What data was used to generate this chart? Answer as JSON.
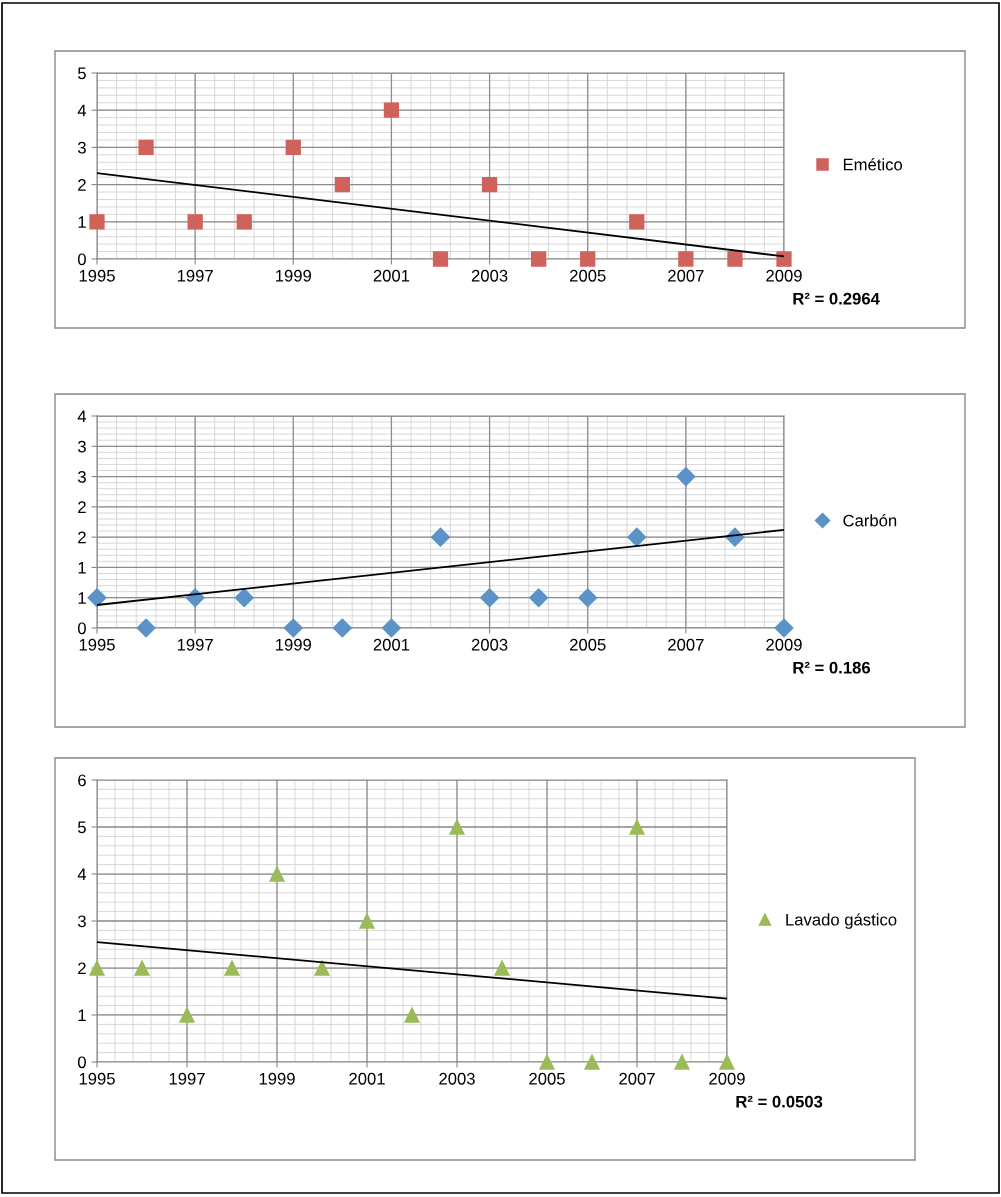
{
  "chart_data": [
    {
      "type": "scatter",
      "xlim": [
        1995,
        2009
      ],
      "xticks": [
        1995,
        1997,
        1999,
        2001,
        2003,
        2005,
        2007,
        2009
      ],
      "ylim": [
        0,
        5
      ],
      "yticks": [
        0,
        1,
        2,
        3,
        4,
        5
      ],
      "grid": true,
      "legend": "right",
      "annotations": [
        "R² = 0.2964"
      ],
      "series": [
        {
          "name": "Emético",
          "color": "#d0625c",
          "marker": "square",
          "x": [
            1995,
            1996,
            1997,
            1998,
            1999,
            2000,
            2001,
            2002,
            2003,
            2004,
            2005,
            2006,
            2007,
            2008,
            2009
          ],
          "values": [
            1,
            3,
            1,
            1,
            3,
            2,
            4,
            0,
            2,
            0,
            0,
            1,
            0,
            0,
            0
          ]
        },
        {
          "type": "line",
          "color": "#000000",
          "x": [
            1995,
            2009
          ],
          "values": [
            2.31,
            0.07
          ]
        }
      ]
    },
    {
      "type": "scatter",
      "xlim": [
        1995,
        2009
      ],
      "xticks": [
        1995,
        1997,
        1999,
        2001,
        2003,
        2005,
        2007,
        2009
      ],
      "ylim": [
        0,
        3.5
      ],
      "yticks": [
        0,
        {
          "value": 0.5,
          "label": "1"
        },
        1,
        {
          "value": 1.5,
          "label": "2"
        },
        2,
        {
          "value": 2.5,
          "label": "3"
        },
        3,
        {
          "value": 3.5,
          "label": "4"
        }
      ],
      "grid": true,
      "legend": "right",
      "annotations": [
        "R² = 0.186"
      ],
      "series": [
        {
          "name": "Carbón",
          "color": "#5b93c9",
          "marker": "diamond",
          "x": [
            1995,
            1996,
            1997,
            1998,
            1999,
            2000,
            2001,
            2002,
            2003,
            2004,
            2005,
            2006,
            2007,
            2008,
            2009
          ],
          "values": [
            0.5,
            0,
            0.5,
            0.5,
            0,
            0,
            0,
            1.5,
            0.5,
            0.5,
            0.5,
            1.5,
            2.5,
            1.5,
            0
          ]
        },
        {
          "type": "line",
          "color": "#000000",
          "x": [
            1995,
            2009
          ],
          "values": [
            0.38,
            1.62
          ]
        }
      ]
    },
    {
      "type": "scatter",
      "xlim": [
        1995,
        2009
      ],
      "xticks": [
        1995,
        1997,
        1999,
        2001,
        2003,
        2005,
        2007,
        2009
      ],
      "ylim": [
        0,
        6
      ],
      "yticks": [
        0,
        1,
        2,
        3,
        4,
        5,
        6
      ],
      "grid": true,
      "legend": "right",
      "annotations": [
        "R² = 0.0503"
      ],
      "series": [
        {
          "name": "Lavado gástico",
          "color": "#9bbb59",
          "marker": "triangle",
          "x": [
            1995,
            1996,
            1997,
            1998,
            1999,
            2000,
            2001,
            2002,
            2003,
            2004,
            2005,
            2006,
            2007,
            2008,
            2009
          ],
          "values": [
            2,
            2,
            1,
            2,
            4,
            2,
            3,
            1,
            5,
            2,
            0,
            0,
            5,
            0,
            0
          ]
        },
        {
          "type": "line",
          "color": "#000000",
          "x": [
            1995,
            2009
          ],
          "values": [
            2.55,
            1.35
          ]
        }
      ]
    }
  ]
}
